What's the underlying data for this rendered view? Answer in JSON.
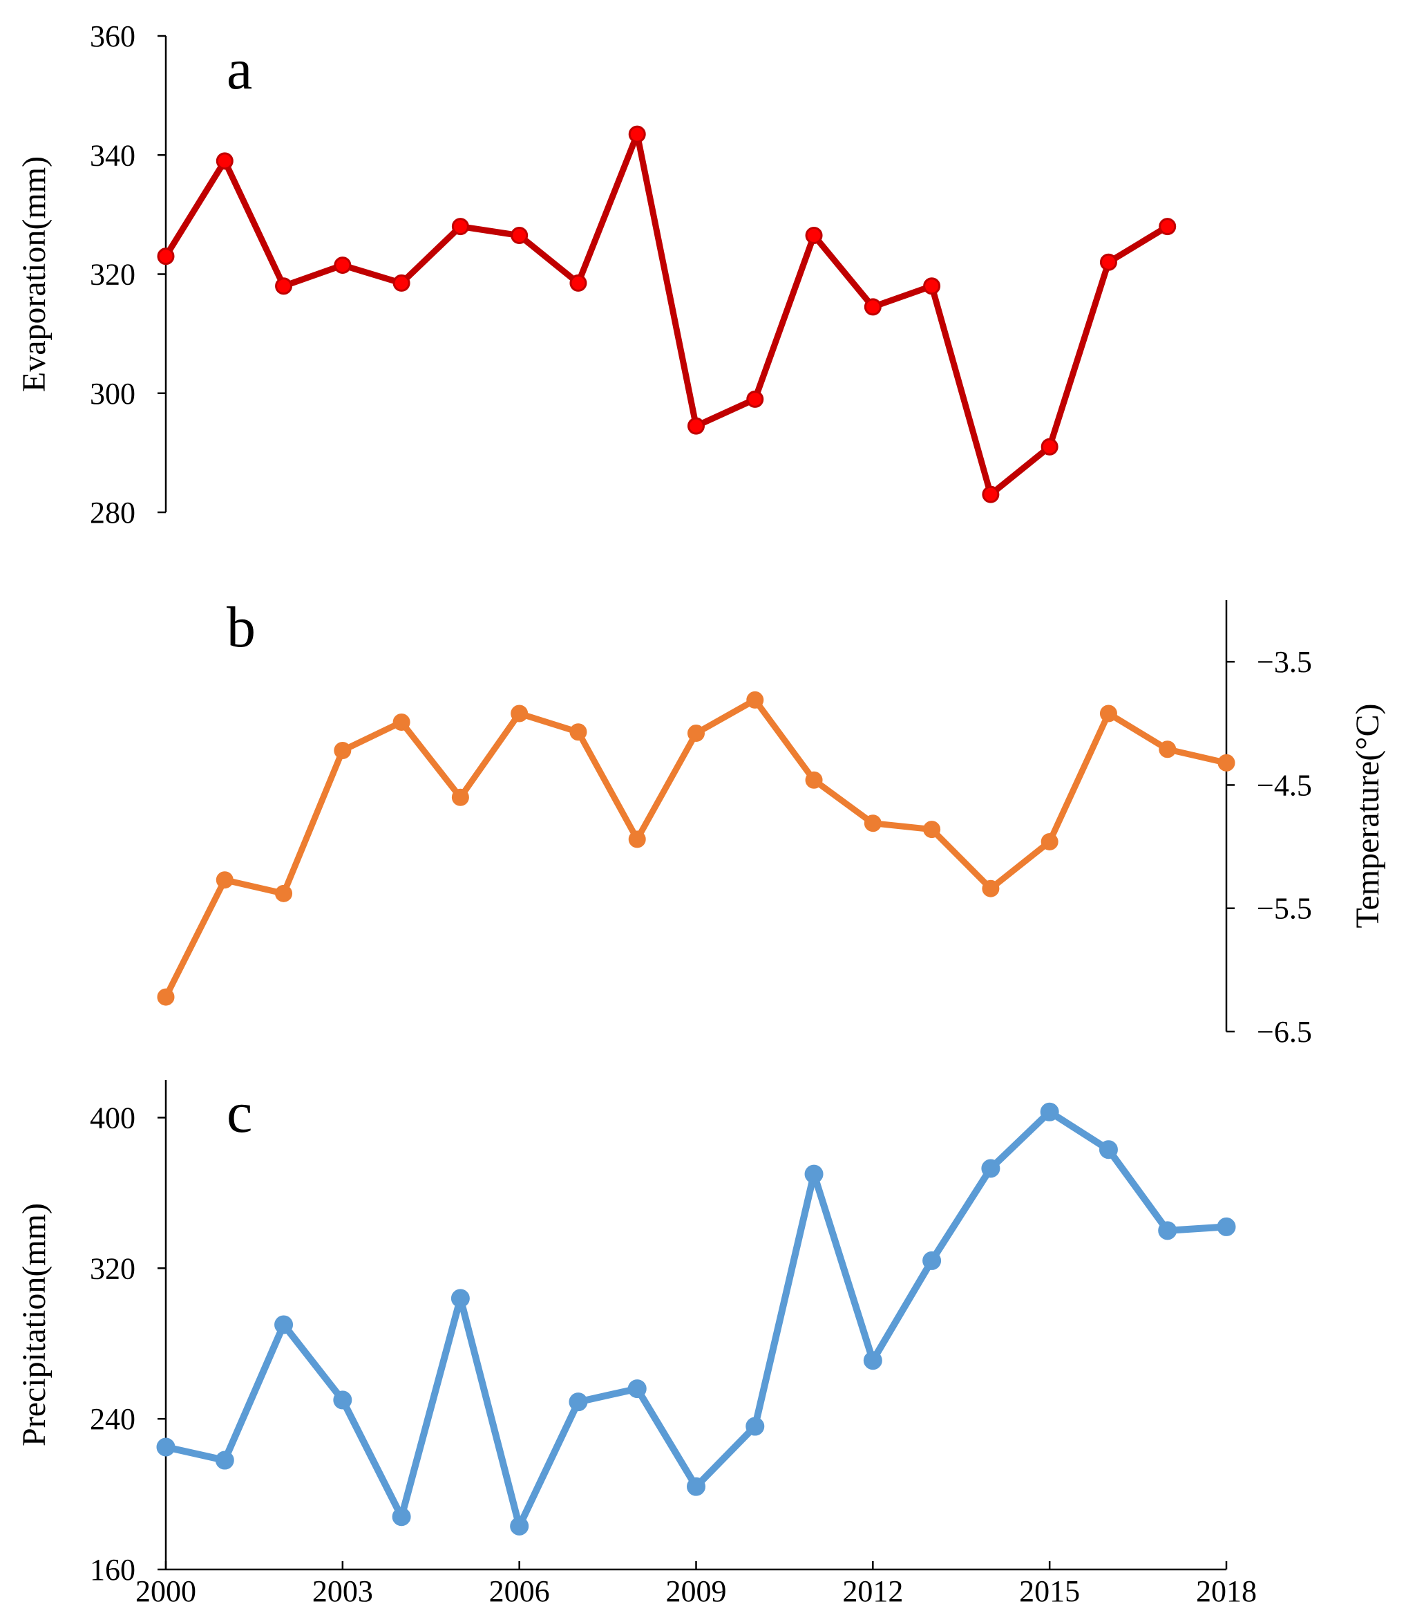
{
  "chart_data": [
    {
      "type": "line",
      "panel": "a",
      "title": "a",
      "xlabel": "",
      "ylabel": "Evaporation(mm)",
      "ylim": [
        280,
        360
      ],
      "yticks": [
        "280",
        "300",
        "320",
        "340",
        "360"
      ],
      "x": [
        2000,
        2001,
        2002,
        2003,
        2004,
        2005,
        2006,
        2007,
        2008,
        2009,
        2010,
        2011,
        2012,
        2013,
        2014,
        2015,
        2016,
        2017
      ],
      "series": [
        {
          "name": "Evaporation",
          "color": "#c00000",
          "marker_color": "#ff0000",
          "values": [
            323,
            339,
            318,
            321.5,
            318.5,
            328,
            326.5,
            318.5,
            343.5,
            294.5,
            299,
            326.5,
            314.5,
            318,
            283,
            291,
            322,
            328
          ]
        }
      ]
    },
    {
      "type": "line",
      "panel": "b",
      "title": "b",
      "xlabel": "",
      "ylabel": "Temperature(°C)",
      "ylabel_side": "right",
      "ylim": [
        -6.5,
        -3.0
      ],
      "yticks": [
        "−6.5",
        "−5.5",
        "−4.5",
        "−3.5"
      ],
      "x": [
        2000,
        2001,
        2002,
        2003,
        2004,
        2005,
        2006,
        2007,
        2008,
        2009,
        2010,
        2011,
        2012,
        2013,
        2014,
        2015,
        2016,
        2017,
        2018
      ],
      "series": [
        {
          "name": "Temperature",
          "color": "#ed7d31",
          "marker_color": "#ed7d31",
          "values": [
            -6.22,
            -5.27,
            -5.38,
            -4.22,
            -3.99,
            -4.6,
            -3.92,
            -4.07,
            -4.94,
            -4.08,
            -3.81,
            -4.46,
            -4.81,
            -4.86,
            -5.34,
            -4.96,
            -3.92,
            -4.21,
            -4.32
          ]
        }
      ]
    },
    {
      "type": "line",
      "panel": "c",
      "title": "c",
      "xlabel": "",
      "ylabel": "Precipitation(mm)",
      "ylim": [
        160,
        420
      ],
      "yticks": [
        "160",
        "240",
        "320",
        "400"
      ],
      "x": [
        2000,
        2001,
        2002,
        2003,
        2004,
        2005,
        2006,
        2007,
        2008,
        2009,
        2010,
        2011,
        2012,
        2013,
        2014,
        2015,
        2016,
        2017,
        2018
      ],
      "xticks": [
        "2000",
        "2003",
        "2006",
        "2009",
        "2012",
        "2015",
        "2018"
      ],
      "series": [
        {
          "name": "Precipitation",
          "color": "#5b9bd5",
          "marker_color": "#5b9bd5",
          "values": [
            225,
            218,
            290,
            250,
            188,
            304,
            183,
            249,
            256,
            204,
            236,
            370,
            271,
            324,
            373,
            403,
            383,
            340,
            342
          ]
        }
      ]
    }
  ]
}
